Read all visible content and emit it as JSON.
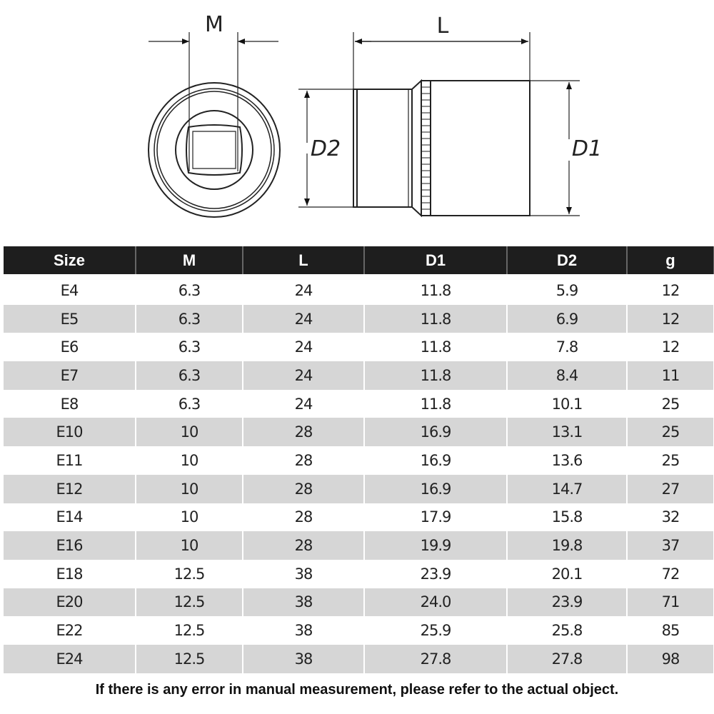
{
  "diagram": {
    "labels": {
      "m": "M",
      "l": "L",
      "d1": "D1",
      "d2": "D2"
    }
  },
  "table": {
    "headers": [
      "Size",
      "M",
      "L",
      "D1",
      "D2",
      "g"
    ],
    "rows": [
      [
        "E4",
        "6.3",
        "24",
        "11.8",
        "5.9",
        "12"
      ],
      [
        "E5",
        "6.3",
        "24",
        "11.8",
        "6.9",
        "12"
      ],
      [
        "E6",
        "6.3",
        "24",
        "11.8",
        "7.8",
        "12"
      ],
      [
        "E7",
        "6.3",
        "24",
        "11.8",
        "8.4",
        "11"
      ],
      [
        "E8",
        "6.3",
        "24",
        "11.8",
        "10.1",
        "25"
      ],
      [
        "E10",
        "10",
        "28",
        "16.9",
        "13.1",
        "25"
      ],
      [
        "E11",
        "10",
        "28",
        "16.9",
        "13.6",
        "25"
      ],
      [
        "E12",
        "10",
        "28",
        "16.9",
        "14.7",
        "27"
      ],
      [
        "E14",
        "10",
        "28",
        "17.9",
        "15.8",
        "32"
      ],
      [
        "E16",
        "10",
        "28",
        "19.9",
        "19.8",
        "37"
      ],
      [
        "E18",
        "12.5",
        "38",
        "23.9",
        "20.1",
        "72"
      ],
      [
        "E20",
        "12.5",
        "38",
        "24.0",
        "23.9",
        "71"
      ],
      [
        "E22",
        "12.5",
        "38",
        "25.9",
        "25.8",
        "85"
      ],
      [
        "E24",
        "12.5",
        "38",
        "27.8",
        "27.8",
        "98"
      ]
    ]
  },
  "footer": "If there is any error in manual measurement, please refer to the actual object."
}
